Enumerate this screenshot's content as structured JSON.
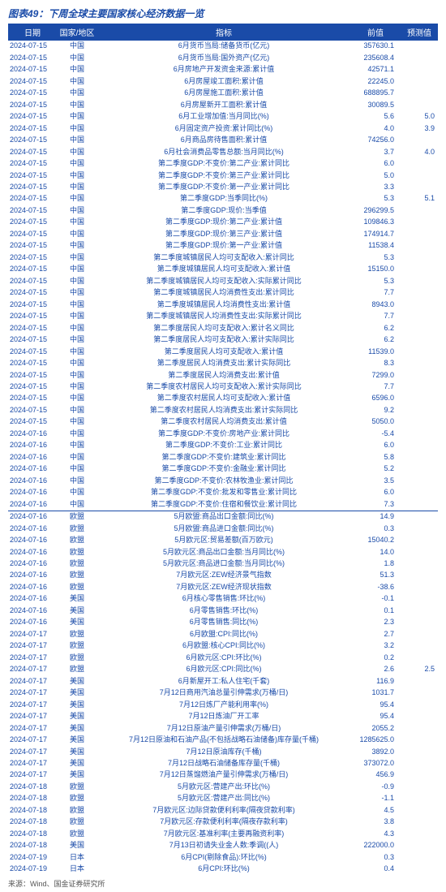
{
  "title": "图表49：下周全球主要国家核心经济数据一览",
  "footer": "来源：Wind、国金证券研究所",
  "table": {
    "columns": {
      "date": "日期",
      "region": "国家/地区",
      "indicator": "指标",
      "prev": "前值",
      "forecast": "预测值"
    },
    "style": {
      "header_bg": "#1a4ba8",
      "header_fg": "#ffffff",
      "text_color": "#1a4ba8",
      "font_size_body": 9,
      "font_size_header": 10,
      "separator_color": "#1a4ba8",
      "col_widths": {
        "date": 60,
        "region": 50,
        "prev": 62,
        "forecast": 46
      }
    },
    "rows": [
      {
        "date": "2024-07-15",
        "region": "中国",
        "indicator": "6月货币当局:储备货币(亿元)",
        "prev": "357630.1",
        "fcst": ""
      },
      {
        "date": "2024-07-15",
        "region": "中国",
        "indicator": "6月货币当局:国外资产(亿元)",
        "prev": "235608.4",
        "fcst": ""
      },
      {
        "date": "2024-07-15",
        "region": "中国",
        "indicator": "6月房地产开发资金来源:累计值",
        "prev": "42571.1",
        "fcst": ""
      },
      {
        "date": "2024-07-15",
        "region": "中国",
        "indicator": "6月房屋竣工面积:累计值",
        "prev": "22245.0",
        "fcst": ""
      },
      {
        "date": "2024-07-15",
        "region": "中国",
        "indicator": "6月房屋施工面积:累计值",
        "prev": "688895.7",
        "fcst": ""
      },
      {
        "date": "2024-07-15",
        "region": "中国",
        "indicator": "6月房屋新开工面积:累计值",
        "prev": "30089.5",
        "fcst": ""
      },
      {
        "date": "2024-07-15",
        "region": "中国",
        "indicator": "6月工业增加值:当月同比(%)",
        "prev": "5.6",
        "fcst": "5.0"
      },
      {
        "date": "2024-07-15",
        "region": "中国",
        "indicator": "6月固定资产投资:累计同比(%)",
        "prev": "4.0",
        "fcst": "3.9"
      },
      {
        "date": "2024-07-15",
        "region": "中国",
        "indicator": "6月商品房待售面积:累计值",
        "prev": "74256.0",
        "fcst": ""
      },
      {
        "date": "2024-07-15",
        "region": "中国",
        "indicator": "6月社会消费品零售总额:当月同比(%)",
        "prev": "3.7",
        "fcst": "4.0"
      },
      {
        "date": "2024-07-15",
        "region": "中国",
        "indicator": "第二季度GDP:不变价:第二产业:累计同比",
        "prev": "6.0",
        "fcst": ""
      },
      {
        "date": "2024-07-15",
        "region": "中国",
        "indicator": "第二季度GDP:不变价:第三产业:累计同比",
        "prev": "5.0",
        "fcst": ""
      },
      {
        "date": "2024-07-15",
        "region": "中国",
        "indicator": "第二季度GDP:不变价:第一产业:累计同比",
        "prev": "3.3",
        "fcst": ""
      },
      {
        "date": "2024-07-15",
        "region": "中国",
        "indicator": "第二季度GDP:当季同比(%)",
        "prev": "5.3",
        "fcst": "5.1"
      },
      {
        "date": "2024-07-15",
        "region": "中国",
        "indicator": "第二季度GDP:现价:当季值",
        "prev": "296299.5",
        "fcst": ""
      },
      {
        "date": "2024-07-15",
        "region": "中国",
        "indicator": "第二季度GDP:现价:第二产业:累计值",
        "prev": "109846.3",
        "fcst": ""
      },
      {
        "date": "2024-07-15",
        "region": "中国",
        "indicator": "第二季度GDP:现价:第三产业:累计值",
        "prev": "174914.7",
        "fcst": ""
      },
      {
        "date": "2024-07-15",
        "region": "中国",
        "indicator": "第二季度GDP:现价:第一产业:累计值",
        "prev": "11538.4",
        "fcst": ""
      },
      {
        "date": "2024-07-15",
        "region": "中国",
        "indicator": "第二季度城镇居民人均可支配收入:累计同比",
        "prev": "5.3",
        "fcst": ""
      },
      {
        "date": "2024-07-15",
        "region": "中国",
        "indicator": "第二季度城镇居民人均可支配收入:累计值",
        "prev": "15150.0",
        "fcst": ""
      },
      {
        "date": "2024-07-15",
        "region": "中国",
        "indicator": "第二季度城镇居民人均可支配收入:实际累计同比",
        "prev": "5.3",
        "fcst": ""
      },
      {
        "date": "2024-07-15",
        "region": "中国",
        "indicator": "第二季度城镇居民人均消费性支出:累计同比",
        "prev": "7.7",
        "fcst": ""
      },
      {
        "date": "2024-07-15",
        "region": "中国",
        "indicator": "第二季度城镇居民人均消费性支出:累计值",
        "prev": "8943.0",
        "fcst": ""
      },
      {
        "date": "2024-07-15",
        "region": "中国",
        "indicator": "第二季度城镇居民人均消费性支出:实际累计同比",
        "prev": "7.7",
        "fcst": ""
      },
      {
        "date": "2024-07-15",
        "region": "中国",
        "indicator": "第二季度居民人均可支配收入:累计名义同比",
        "prev": "6.2",
        "fcst": ""
      },
      {
        "date": "2024-07-15",
        "region": "中国",
        "indicator": "第二季度居民人均可支配收入:累计实际同比",
        "prev": "6.2",
        "fcst": ""
      },
      {
        "date": "2024-07-15",
        "region": "中国",
        "indicator": "第二季度居民人均可支配收入:累计值",
        "prev": "11539.0",
        "fcst": ""
      },
      {
        "date": "2024-07-15",
        "region": "中国",
        "indicator": "第二季度居民人均消费支出:累计实际同比",
        "prev": "8.3",
        "fcst": ""
      },
      {
        "date": "2024-07-15",
        "region": "中国",
        "indicator": "第二季度居民人均消费支出:累计值",
        "prev": "7299.0",
        "fcst": ""
      },
      {
        "date": "2024-07-15",
        "region": "中国",
        "indicator": "第二季度农村居民人均可支配收入:累计实际同比",
        "prev": "7.7",
        "fcst": ""
      },
      {
        "date": "2024-07-15",
        "region": "中国",
        "indicator": "第二季度农村居民人均可支配收入:累计值",
        "prev": "6596.0",
        "fcst": ""
      },
      {
        "date": "2024-07-15",
        "region": "中国",
        "indicator": "第二季度农村居民人均消费支出:累计实际同比",
        "prev": "9.2",
        "fcst": ""
      },
      {
        "date": "2024-07-15",
        "region": "中国",
        "indicator": "第二季度农村居民人均消费支出:累计值",
        "prev": "5050.0",
        "fcst": ""
      },
      {
        "date": "2024-07-16",
        "region": "中国",
        "indicator": "第二季度GDP:不变价:房地产业:累计同比",
        "prev": "-5.4",
        "fcst": ""
      },
      {
        "date": "2024-07-16",
        "region": "中国",
        "indicator": "第二季度GDP:不变价:工业:累计同比",
        "prev": "6.0",
        "fcst": ""
      },
      {
        "date": "2024-07-16",
        "region": "中国",
        "indicator": "第二季度GDP:不变价:建筑业:累计同比",
        "prev": "5.8",
        "fcst": ""
      },
      {
        "date": "2024-07-16",
        "region": "中国",
        "indicator": "第二季度GDP:不变价:金融业:累计同比",
        "prev": "5.2",
        "fcst": ""
      },
      {
        "date": "2024-07-16",
        "region": "中国",
        "indicator": "第二季度GDP:不变价:农林牧渔业:累计同比",
        "prev": "3.5",
        "fcst": ""
      },
      {
        "date": "2024-07-16",
        "region": "中国",
        "indicator": "第二季度GDP:不变价:批发和零售业:累计同比",
        "prev": "6.0",
        "fcst": ""
      },
      {
        "date": "2024-07-16",
        "region": "中国",
        "indicator": "第二季度GDP:不变价:住宿和餐饮业:累计同比",
        "prev": "7.3",
        "fcst": ""
      },
      {
        "sep": true,
        "date": "2024-07-16",
        "region": "欧盟",
        "indicator": "5月欧盟:商品出口金额:同比(%)",
        "prev": "14.9",
        "fcst": ""
      },
      {
        "date": "2024-07-16",
        "region": "欧盟",
        "indicator": "5月欧盟:商品进口金额:同比(%)",
        "prev": "0.3",
        "fcst": ""
      },
      {
        "date": "2024-07-16",
        "region": "欧盟",
        "indicator": "5月欧元区:贸易差额(百万欧元)",
        "prev": "15040.2",
        "fcst": ""
      },
      {
        "date": "2024-07-16",
        "region": "欧盟",
        "indicator": "5月欧元区:商品出口金额:当月同比(%)",
        "prev": "14.0",
        "fcst": ""
      },
      {
        "date": "2024-07-16",
        "region": "欧盟",
        "indicator": "5月欧元区:商品进口金额:当月同比(%)",
        "prev": "1.8",
        "fcst": ""
      },
      {
        "date": "2024-07-16",
        "region": "欧盟",
        "indicator": "7月欧元区:ZEW经济景气指数",
        "prev": "51.3",
        "fcst": ""
      },
      {
        "date": "2024-07-16",
        "region": "欧盟",
        "indicator": "7月欧元区:ZEW经济现状指数",
        "prev": "-38.6",
        "fcst": ""
      },
      {
        "date": "2024-07-16",
        "region": "美国",
        "indicator": "6月核心零售销售:环比(%)",
        "prev": "-0.1",
        "fcst": ""
      },
      {
        "date": "2024-07-16",
        "region": "美国",
        "indicator": "6月零售销售:环比(%)",
        "prev": "0.1",
        "fcst": ""
      },
      {
        "date": "2024-07-16",
        "region": "美国",
        "indicator": "6月零售销售:同比(%)",
        "prev": "2.3",
        "fcst": ""
      },
      {
        "date": "2024-07-17",
        "region": "欧盟",
        "indicator": "6月欧盟:CPI:同比(%)",
        "prev": "2.7",
        "fcst": ""
      },
      {
        "date": "2024-07-17",
        "region": "欧盟",
        "indicator": "6月欧盟:核心CPI:同比(%)",
        "prev": "3.2",
        "fcst": ""
      },
      {
        "date": "2024-07-17",
        "region": "欧盟",
        "indicator": "6月欧元区:CPI:环比(%)",
        "prev": "0.2",
        "fcst": ""
      },
      {
        "date": "2024-07-17",
        "region": "欧盟",
        "indicator": "6月欧元区:CPI:同比(%)",
        "prev": "2.6",
        "fcst": "2.5"
      },
      {
        "date": "2024-07-17",
        "region": "美国",
        "indicator": "6月新屋开工:私人住宅(千套)",
        "prev": "116.9",
        "fcst": ""
      },
      {
        "date": "2024-07-17",
        "region": "美国",
        "indicator": "7月12日商用汽油总量引伸需求(万桶/日)",
        "prev": "1031.7",
        "fcst": ""
      },
      {
        "date": "2024-07-17",
        "region": "美国",
        "indicator": "7月12日炼厂产能利用率(%)",
        "prev": "95.4",
        "fcst": ""
      },
      {
        "date": "2024-07-17",
        "region": "美国",
        "indicator": "7月12日炼油厂开工率",
        "prev": "95.4",
        "fcst": ""
      },
      {
        "date": "2024-07-17",
        "region": "美国",
        "indicator": "7月12日原油产量引伸需求(万桶/日)",
        "prev": "2055.2",
        "fcst": ""
      },
      {
        "date": "2024-07-17",
        "region": "美国",
        "indicator": "7月12日原油和石油产品(不包括战略石油储备)库存量(千桶)",
        "prev": "1285625.0",
        "fcst": ""
      },
      {
        "date": "2024-07-17",
        "region": "美国",
        "indicator": "7月12日原油库存(千桶)",
        "prev": "3892.0",
        "fcst": ""
      },
      {
        "date": "2024-07-17",
        "region": "美国",
        "indicator": "7月12日战略石油储备库存量(千桶)",
        "prev": "373072.0",
        "fcst": ""
      },
      {
        "date": "2024-07-17",
        "region": "美国",
        "indicator": "7月12日蒸馏燃油产量引伸需求(万桶/日)",
        "prev": "456.9",
        "fcst": ""
      },
      {
        "date": "2024-07-18",
        "region": "欧盟",
        "indicator": "5月欧元区:营建产出:环比(%)",
        "prev": "-0.9",
        "fcst": ""
      },
      {
        "date": "2024-07-18",
        "region": "欧盟",
        "indicator": "5月欧元区:营建产出:同比(%)",
        "prev": "-1.1",
        "fcst": ""
      },
      {
        "date": "2024-07-18",
        "region": "欧盟",
        "indicator": "7月欧元区:边际贷款便利利率(隔夜贷款利率)",
        "prev": "4.5",
        "fcst": ""
      },
      {
        "date": "2024-07-18",
        "region": "欧盟",
        "indicator": "7月欧元区:存款便利利率(隔夜存款利率)",
        "prev": "3.8",
        "fcst": ""
      },
      {
        "date": "2024-07-18",
        "region": "欧盟",
        "indicator": "7月欧元区:基准利率(主要再融资利率)",
        "prev": "4.3",
        "fcst": ""
      },
      {
        "date": "2024-07-18",
        "region": "美国",
        "indicator": "7月13日初请失业金人数:季调((人)",
        "prev": "222000.0",
        "fcst": ""
      },
      {
        "date": "2024-07-19",
        "region": "日本",
        "indicator": "6月CPI(剔除食品):环比(%)",
        "prev": "0.3",
        "fcst": ""
      },
      {
        "date": "2024-07-19",
        "region": "日本",
        "indicator": "6月CPI:环比(%)",
        "prev": "0.4",
        "fcst": ""
      }
    ]
  }
}
